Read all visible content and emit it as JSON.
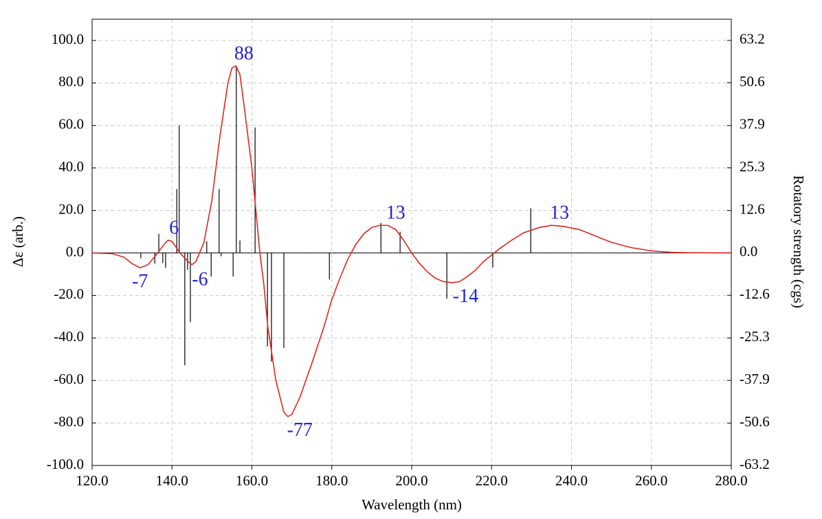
{
  "chart_data": {
    "type": "line",
    "xlabel": "Wavelength (nm)",
    "ylabel": "Δε (arb.)",
    "y2label": "Rotatory strength (cgs)",
    "xlim": [
      120,
      280
    ],
    "ylim": [
      -100,
      110
    ],
    "y2lim": [
      -63.2,
      69.5
    ],
    "grid": true,
    "xticks": [
      {
        "value": 120,
        "label": "120.0"
      },
      {
        "value": 140,
        "label": "140.0"
      },
      {
        "value": 160,
        "label": "160.0"
      },
      {
        "value": 180,
        "label": "180.0"
      },
      {
        "value": 200,
        "label": "200.0"
      },
      {
        "value": 220,
        "label": "220.0"
      },
      {
        "value": 240,
        "label": "240.0"
      },
      {
        "value": 260,
        "label": "260.0"
      },
      {
        "value": 280,
        "label": "280.0"
      }
    ],
    "yticks": [
      {
        "value": -100,
        "label": "-100.0"
      },
      {
        "value": -80,
        "label": "-80.0"
      },
      {
        "value": -60,
        "label": "-60.0"
      },
      {
        "value": -40,
        "label": "-40.0"
      },
      {
        "value": -20,
        "label": "-20.0"
      },
      {
        "value": 0,
        "label": "0.0"
      },
      {
        "value": 20,
        "label": "20.0"
      },
      {
        "value": 40,
        "label": "40.0"
      },
      {
        "value": 60,
        "label": "60.0"
      },
      {
        "value": 80,
        "label": "80.0"
      },
      {
        "value": 100,
        "label": "100.0"
      }
    ],
    "y2ticks": [
      -63.2,
      -50.6,
      -37.9,
      -25.3,
      -12.6,
      {
        "value": 0,
        "label": "0.0"
      },
      12.6,
      25.3,
      37.9,
      50.6,
      63.2
    ],
    "series": [
      {
        "type": "line",
        "color": "#e0241c",
        "x": [
          120,
          125,
          128,
          130,
          132,
          134,
          136,
          138,
          139,
          140,
          142,
          144,
          145,
          146,
          148,
          150,
          152,
          154,
          155,
          156,
          157,
          158,
          160,
          162,
          163,
          164,
          166,
          168,
          169,
          170,
          172,
          175,
          178,
          180,
          182,
          184,
          186,
          188,
          190,
          192,
          194,
          196,
          198,
          200,
          202,
          204,
          206,
          208,
          210,
          212,
          214,
          216,
          218,
          220,
          222,
          225,
          228,
          232,
          235,
          238,
          242,
          246,
          250,
          255,
          260,
          265,
          270,
          280
        ],
        "values": [
          0,
          -0.3,
          -2,
          -5,
          -7,
          -5.5,
          -1,
          4,
          6,
          5.5,
          0,
          -4,
          -5.5,
          -4,
          5,
          25,
          55,
          80,
          87,
          88,
          84,
          70,
          40,
          0,
          -15,
          -35,
          -60,
          -75,
          -77,
          -76,
          -68,
          -52,
          -35,
          -22,
          -12,
          -3,
          4,
          9,
          12,
          13,
          13,
          11,
          6,
          0,
          -5,
          -9,
          -12,
          -13.5,
          -14,
          -13.5,
          -11,
          -8,
          -4,
          -1,
          2,
          6,
          9.5,
          12,
          13,
          12.5,
          11,
          8,
          5,
          2.5,
          1,
          0.3,
          0.1,
          0
        ]
      },
      {
        "type": "stick",
        "axis": "y2",
        "color": "#000000",
        "x": [
          132.2,
          135.7,
          136.7,
          137.7,
          138.4,
          141.2,
          141.8,
          143.2,
          143.9,
          144.6,
          148.7,
          149.8,
          151.8,
          152.3,
          155.3,
          156.1,
          157.0,
          160.8,
          163.9,
          164.9,
          168.0,
          179.4,
          192.3,
          197.1,
          208.8,
          220.3,
          229.8
        ],
        "values": [
          -1.6,
          -3.2,
          5.7,
          -3,
          -4.4,
          19,
          37.9,
          -33.4,
          -5,
          -20.6,
          3.5,
          -7,
          19,
          -1,
          -7,
          55.7,
          3.7,
          37.3,
          -27.8,
          -32.3,
          -28.3,
          -7.9,
          8.9,
          6.3,
          -13.6,
          -4.3,
          13.3
        ]
      }
    ],
    "annotations": [
      {
        "text": "88",
        "x": 158,
        "y": 88
      },
      {
        "text": "-7",
        "x": 132,
        "y": -7
      },
      {
        "text": "6",
        "x": 140.5,
        "y": 6
      },
      {
        "text": "-6",
        "x": 147,
        "y": -6
      },
      {
        "text": "-77",
        "x": 172,
        "y": -77
      },
      {
        "text": "13",
        "x": 196,
        "y": 13
      },
      {
        "text": "-14",
        "x": 213.5,
        "y": -14
      },
      {
        "text": "13",
        "x": 237,
        "y": 13
      }
    ]
  }
}
